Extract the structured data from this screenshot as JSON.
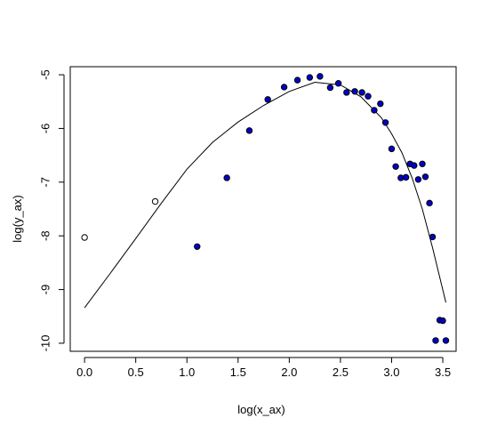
{
  "chart_data": {
    "type": "scatter",
    "xlabel": "log(x_ax)",
    "ylabel": "log(y_ax)",
    "xlim": [
      -0.14,
      3.63
    ],
    "ylim": [
      -10.15,
      -4.85
    ],
    "x_ticks": [
      0.0,
      0.5,
      1.0,
      1.5,
      2.0,
      2.5,
      3.0,
      3.5
    ],
    "x_tick_labels": [
      "0.0",
      "0.5",
      "1.0",
      "1.5",
      "2.0",
      "2.5",
      "3.0",
      "3.5"
    ],
    "y_ticks": [
      -10,
      -9,
      -8,
      -7,
      -6,
      -5
    ],
    "y_tick_labels": [
      "-10",
      "-9",
      "-8",
      "-7",
      "-6",
      "-5"
    ],
    "grid": false,
    "legend": "none",
    "colors": {
      "filled_point": "#0000cc",
      "point_stroke": "#000000",
      "curve": "#000000"
    },
    "open_points": [
      {
        "x": 0.0,
        "y": -8.03
      },
      {
        "x": 0.69,
        "y": -7.36
      }
    ],
    "filled_points": [
      {
        "x": 1.1,
        "y": -8.2
      },
      {
        "x": 1.39,
        "y": -6.92
      },
      {
        "x": 1.61,
        "y": -6.04
      },
      {
        "x": 1.79,
        "y": -5.46
      },
      {
        "x": 1.95,
        "y": -5.23
      },
      {
        "x": 2.08,
        "y": -5.1
      },
      {
        "x": 2.2,
        "y": -5.05
      },
      {
        "x": 2.3,
        "y": -5.03
      },
      {
        "x": 2.4,
        "y": -5.24
      },
      {
        "x": 2.48,
        "y": -5.16
      },
      {
        "x": 2.56,
        "y": -5.33
      },
      {
        "x": 2.64,
        "y": -5.31
      },
      {
        "x": 2.71,
        "y": -5.33
      },
      {
        "x": 2.77,
        "y": -5.4
      },
      {
        "x": 2.83,
        "y": -5.66
      },
      {
        "x": 2.89,
        "y": -5.54
      },
      {
        "x": 2.94,
        "y": -5.89
      },
      {
        "x": 3.0,
        "y": -6.38
      },
      {
        "x": 3.04,
        "y": -6.71
      },
      {
        "x": 3.09,
        "y": -6.92
      },
      {
        "x": 3.14,
        "y": -6.91
      },
      {
        "x": 3.18,
        "y": -6.66
      },
      {
        "x": 3.22,
        "y": -6.69
      },
      {
        "x": 3.26,
        "y": -6.95
      },
      {
        "x": 3.3,
        "y": -6.66
      },
      {
        "x": 3.33,
        "y": -6.9
      },
      {
        "x": 3.37,
        "y": -7.39
      },
      {
        "x": 3.4,
        "y": -8.02
      },
      {
        "x": 3.43,
        "y": -9.95
      },
      {
        "x": 3.47,
        "y": -9.57
      },
      {
        "x": 3.5,
        "y": -9.58
      },
      {
        "x": 3.53,
        "y": -9.95
      }
    ],
    "fitted_curve": [
      {
        "x": 0.0,
        "y": -9.34
      },
      {
        "x": 0.25,
        "y": -8.7
      },
      {
        "x": 0.5,
        "y": -8.05
      },
      {
        "x": 0.75,
        "y": -7.39
      },
      {
        "x": 1.0,
        "y": -6.76
      },
      {
        "x": 1.25,
        "y": -6.26
      },
      {
        "x": 1.5,
        "y": -5.88
      },
      {
        "x": 1.75,
        "y": -5.57
      },
      {
        "x": 2.0,
        "y": -5.31
      },
      {
        "x": 2.25,
        "y": -5.14
      },
      {
        "x": 2.5,
        "y": -5.19
      },
      {
        "x": 2.7,
        "y": -5.41
      },
      {
        "x": 2.9,
        "y": -5.8
      },
      {
        "x": 3.0,
        "y": -6.1
      },
      {
        "x": 3.1,
        "y": -6.45
      },
      {
        "x": 3.2,
        "y": -6.92
      },
      {
        "x": 3.3,
        "y": -7.5
      },
      {
        "x": 3.4,
        "y": -8.22
      },
      {
        "x": 3.53,
        "y": -9.24
      }
    ]
  }
}
